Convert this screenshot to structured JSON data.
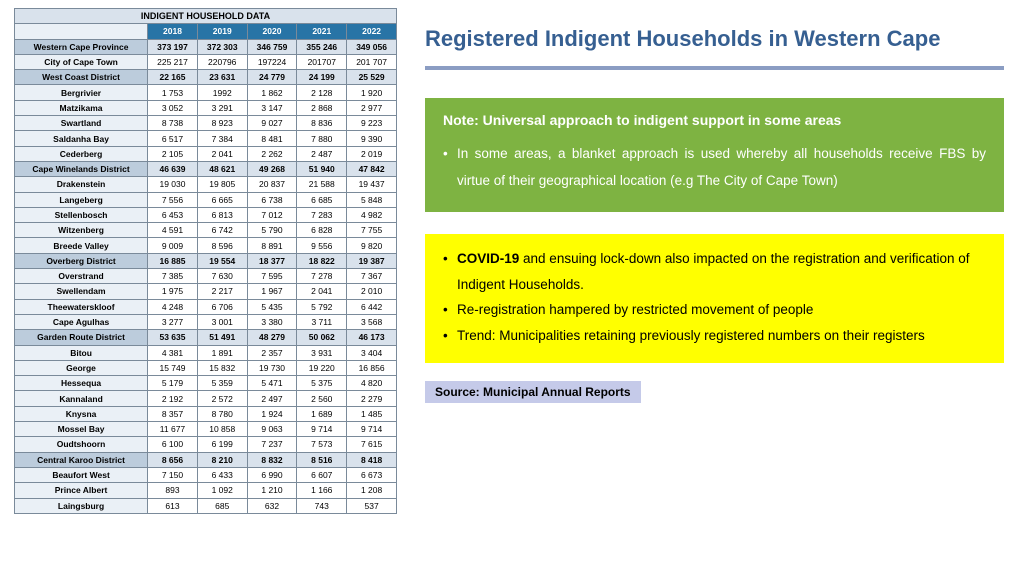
{
  "table": {
    "title": "INDIGENT HOUSEHOLD DATA",
    "years": [
      "2018",
      "2019",
      "2020",
      "2021",
      "2022"
    ],
    "rows": [
      {
        "name": "Western Cape Province",
        "v": [
          "373 197",
          "372 303",
          "346 759",
          "355 246",
          "349 056"
        ],
        "t": "district"
      },
      {
        "name": "City of Cape Town",
        "v": [
          "225 217",
          "220796",
          "197224",
          "201707",
          "201 707"
        ],
        "t": "sub"
      },
      {
        "name": "West Coast District",
        "v": [
          "22 165",
          "23 631",
          "24 779",
          "24 199",
          "25 529"
        ],
        "t": "district"
      },
      {
        "name": "Bergrivier",
        "v": [
          "1 753",
          "1992",
          "1 862",
          "2 128",
          "1 920"
        ],
        "t": "sub"
      },
      {
        "name": "Matzikama",
        "v": [
          "3 052",
          "3 291",
          "3 147",
          "2 868",
          "2 977"
        ],
        "t": "sub"
      },
      {
        "name": "Swartland",
        "v": [
          "8 738",
          "8 923",
          "9 027",
          "8 836",
          "9 223"
        ],
        "t": "sub"
      },
      {
        "name": "Saldanha Bay",
        "v": [
          "6 517",
          "7 384",
          "8 481",
          "7 880",
          "9 390"
        ],
        "t": "sub"
      },
      {
        "name": "Cederberg",
        "v": [
          "2 105",
          "2 041",
          "2 262",
          "2 487",
          "2 019"
        ],
        "t": "sub"
      },
      {
        "name": "Cape Winelands District",
        "v": [
          "46 639",
          "48 621",
          "49 268",
          "51 940",
          "47 842"
        ],
        "t": "district"
      },
      {
        "name": "Drakenstein",
        "v": [
          "19 030",
          "19 805",
          "20 837",
          "21 588",
          "19 437"
        ],
        "t": "sub"
      },
      {
        "name": "Langeberg",
        "v": [
          "7 556",
          "6 665",
          "6 738",
          "6 685",
          "5 848"
        ],
        "t": "sub"
      },
      {
        "name": "Stellenbosch",
        "v": [
          "6 453",
          "6 813",
          "7 012",
          "7 283",
          "4 982"
        ],
        "t": "sub"
      },
      {
        "name": "Witzenberg",
        "v": [
          "4 591",
          "6 742",
          "5 790",
          "6 828",
          "7 755"
        ],
        "t": "sub"
      },
      {
        "name": "Breede Valley",
        "v": [
          "9 009",
          "8 596",
          "8 891",
          "9 556",
          "9 820"
        ],
        "t": "sub"
      },
      {
        "name": "Overberg District",
        "v": [
          "16 885",
          "19 554",
          "18 377",
          "18 822",
          "19 387"
        ],
        "t": "district"
      },
      {
        "name": "Overstrand",
        "v": [
          "7 385",
          "7 630",
          "7 595",
          "7 278",
          "7 367"
        ],
        "t": "sub"
      },
      {
        "name": "Swellendam",
        "v": [
          "1 975",
          "2 217",
          "1 967",
          "2 041",
          "2 010"
        ],
        "t": "sub"
      },
      {
        "name": "Theewaterskloof",
        "v": [
          "4 248",
          "6 706",
          "5 435",
          "5 792",
          "6 442"
        ],
        "t": "sub"
      },
      {
        "name": "Cape Agulhas",
        "v": [
          "3 277",
          "3 001",
          "3 380",
          "3 711",
          "3 568"
        ],
        "t": "sub"
      },
      {
        "name": "Garden Route District",
        "v": [
          "53 635",
          "51 491",
          "48 279",
          "50 062",
          "46 173"
        ],
        "t": "district"
      },
      {
        "name": "Bitou",
        "v": [
          "4 381",
          "1 891",
          "2 357",
          "3 931",
          "3 404"
        ],
        "t": "sub"
      },
      {
        "name": "George",
        "v": [
          "15 749",
          "15 832",
          "19 730",
          "19 220",
          "16 856"
        ],
        "t": "sub"
      },
      {
        "name": "Hessequa",
        "v": [
          "5 179",
          "5 359",
          "5 471",
          "5 375",
          "4 820"
        ],
        "t": "sub"
      },
      {
        "name": "Kannaland",
        "v": [
          "2 192",
          "2 572",
          "2 497",
          "2 560",
          "2 279"
        ],
        "t": "sub"
      },
      {
        "name": "Knysna",
        "v": [
          "8 357",
          "8 780",
          "1 924",
          "1 689",
          "1 485"
        ],
        "t": "sub"
      },
      {
        "name": "Mossel Bay",
        "v": [
          "11 677",
          "10 858",
          "9 063",
          "9 714",
          "9 714"
        ],
        "t": "sub"
      },
      {
        "name": "Oudtshoorn",
        "v": [
          "6 100",
          "6 199",
          "7 237",
          "7 573",
          "7 615"
        ],
        "t": "sub"
      },
      {
        "name": "Central Karoo District",
        "v": [
          "8 656",
          "8 210",
          "8 832",
          "8 516",
          "8 418"
        ],
        "t": "district"
      },
      {
        "name": "Beaufort West",
        "v": [
          "7 150",
          "6 433",
          "6 990",
          "6 607",
          "6 673"
        ],
        "t": "sub"
      },
      {
        "name": "Prince Albert",
        "v": [
          "893",
          "1 092",
          "1 210",
          "1 166",
          "1 208"
        ],
        "t": "sub"
      },
      {
        "name": "Laingsburg",
        "v": [
          "613",
          "685",
          "632",
          "743",
          "537"
        ],
        "t": "sub"
      }
    ]
  },
  "title": "Registered Indigent Households in Western Cape",
  "green": {
    "heading": "Note: Universal approach to indigent support in some areas",
    "bullets": [
      "In some areas, a blanket approach is used whereby all households receive FBS by virtue of their geographical location (e.g The City of Cape Town)"
    ]
  },
  "yellow": {
    "bullets": [
      "<b>COVID-19</b> and ensuing lock-down also impacted on the registration and verification of Indigent Households.",
      "Re-registration hampered by restricted movement of people",
      "Trend: Municipalities retaining previously registered numbers on their registers"
    ]
  },
  "source": "Source: Municipal Annual Reports",
  "colors": {
    "title": "#365f91",
    "divider": "#8b9dc3",
    "green_bg": "#7eb342",
    "yellow_bg": "#ffff00",
    "source_bg": "#c5cae9",
    "year_header_bg": "#2874a6",
    "district_bg": "#bcccdc",
    "district_cells_bg": "#d9e2ec"
  }
}
